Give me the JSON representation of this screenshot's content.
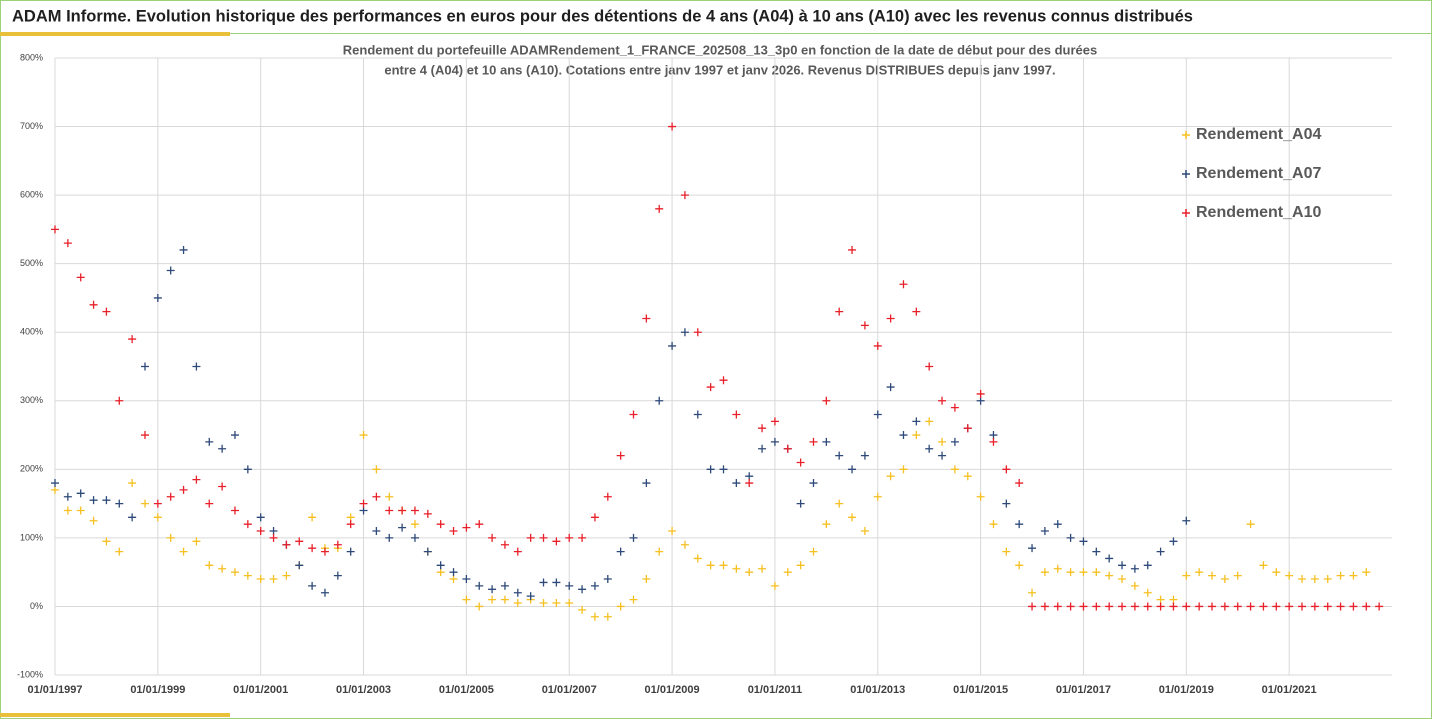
{
  "header": {
    "title": "ADAM Informe. Evolution historique des performances en euros pour des détentions de 4 ans (A04) à 10 ans (A10) avec les revenus connus distribués"
  },
  "chart_data": {
    "type": "scatter",
    "title_lines": [
      "Rendement du portefeuille ADAMRendement_1_FRANCE_202508_13_3p0  en fonction de la date de début pour des durées",
      "entre 4 (A04) et 10 ans (A10). Cotations entre janv 1997 et janv 2026. Revenus DISTRIBUES depuis janv 1997."
    ],
    "x": [
      "01/01/1997",
      "01/04/1997",
      "01/07/1997",
      "01/10/1997",
      "01/01/1998",
      "01/04/1998",
      "01/07/1998",
      "01/10/1998",
      "01/01/1999",
      "01/04/1999",
      "01/07/1999",
      "01/10/1999",
      "01/01/2000",
      "01/04/2000",
      "01/07/2000",
      "01/10/2000",
      "01/01/2001",
      "01/04/2001",
      "01/07/2001",
      "01/10/2001",
      "01/01/2002",
      "01/04/2002",
      "01/07/2002",
      "01/10/2002",
      "01/01/2003",
      "01/04/2003",
      "01/07/2003",
      "01/10/2003",
      "01/01/2004",
      "01/04/2004",
      "01/07/2004",
      "01/10/2004",
      "01/01/2005",
      "01/04/2005",
      "01/07/2005",
      "01/10/2005",
      "01/01/2006",
      "01/04/2006",
      "01/07/2006",
      "01/10/2006",
      "01/01/2007",
      "01/04/2007",
      "01/07/2007",
      "01/10/2007",
      "01/01/2008",
      "01/04/2008",
      "01/07/2008",
      "01/10/2008",
      "01/01/2009",
      "01/04/2009",
      "01/07/2009",
      "01/10/2009",
      "01/01/2010",
      "01/04/2010",
      "01/07/2010",
      "01/10/2010",
      "01/01/2011",
      "01/04/2011",
      "01/07/2011",
      "01/10/2011",
      "01/01/2012",
      "01/04/2012",
      "01/07/2012",
      "01/10/2012",
      "01/01/2013",
      "01/04/2013",
      "01/07/2013",
      "01/10/2013",
      "01/01/2014",
      "01/04/2014",
      "01/07/2014",
      "01/10/2014",
      "01/01/2015",
      "01/04/2015",
      "01/07/2015",
      "01/10/2015",
      "01/01/2016",
      "01/04/2016",
      "01/07/2016",
      "01/10/2016",
      "01/01/2017",
      "01/04/2017",
      "01/07/2017",
      "01/10/2017",
      "01/01/2018",
      "01/04/2018",
      "01/07/2018",
      "01/10/2018",
      "01/01/2019",
      "01/04/2019",
      "01/07/2019",
      "01/10/2019",
      "01/01/2020",
      "01/04/2020",
      "01/07/2020",
      "01/10/2020",
      "01/01/2021",
      "01/04/2021",
      "01/07/2021",
      "01/10/2021",
      "01/01/2022",
      "01/04/2022",
      "01/07/2022",
      "01/10/2022"
    ],
    "series": [
      {
        "name": "Rendement_A04",
        "color": "#f5c020",
        "values": [
          170,
          140,
          140,
          125,
          95,
          80,
          180,
          150,
          130,
          100,
          80,
          95,
          60,
          55,
          50,
          45,
          40,
          40,
          45,
          60,
          130,
          85,
          85,
          130,
          250,
          200,
          160,
          140,
          120,
          80,
          50,
          40,
          10,
          0,
          10,
          10,
          5,
          10,
          5,
          5,
          5,
          -5,
          -15,
          -15,
          0,
          10,
          40,
          80,
          110,
          90,
          70,
          60,
          60,
          55,
          50,
          55,
          30,
          50,
          60,
          80,
          120,
          150,
          130,
          110,
          160,
          190,
          200,
          250,
          270,
          240,
          200,
          190,
          160,
          120,
          80,
          60,
          20,
          50,
          55,
          50,
          50,
          50,
          45,
          40,
          30,
          20,
          10,
          10,
          45,
          50,
          45,
          40,
          45,
          120,
          60,
          50,
          45,
          40,
          40,
          40,
          45,
          45,
          50,
          null
        ]
      },
      {
        "name": "Rendement_A07",
        "color": "#2e4a7a",
        "values": [
          180,
          160,
          165,
          155,
          155,
          150,
          130,
          350,
          450,
          490,
          520,
          350,
          240,
          230,
          250,
          200,
          130,
          110,
          90,
          60,
          30,
          20,
          45,
          80,
          140,
          110,
          100,
          115,
          100,
          80,
          60,
          50,
          40,
          30,
          25,
          30,
          20,
          15,
          35,
          35,
          30,
          25,
          30,
          40,
          80,
          100,
          180,
          300,
          380,
          400,
          280,
          200,
          200,
          180,
          190,
          230,
          240,
          230,
          150,
          180,
          240,
          220,
          200,
          220,
          280,
          320,
          250,
          270,
          230,
          220,
          240,
          260,
          300,
          250,
          150,
          120,
          85,
          110,
          120,
          100,
          95,
          80,
          70,
          60,
          55,
          60,
          80,
          95,
          125,
          null,
          null,
          null,
          null,
          null,
          null,
          null,
          null,
          null,
          null,
          null,
          null,
          null,
          null,
          null
        ]
      },
      {
        "name": "Rendement_A10",
        "color": "#e8202a",
        "values": [
          550,
          530,
          480,
          440,
          430,
          300,
          390,
          250,
          150,
          160,
          170,
          185,
          150,
          175,
          140,
          120,
          110,
          100,
          90,
          95,
          85,
          80,
          90,
          120,
          150,
          160,
          140,
          140,
          140,
          135,
          120,
          110,
          115,
          120,
          100,
          90,
          80,
          100,
          100,
          95,
          100,
          100,
          130,
          160,
          220,
          280,
          420,
          580,
          700,
          600,
          400,
          320,
          330,
          280,
          180,
          260,
          270,
          230,
          210,
          240,
          300,
          430,
          520,
          410,
          380,
          420,
          470,
          430,
          350,
          300,
          290,
          260,
          310,
          240,
          200,
          180,
          0,
          0,
          0,
          0,
          0,
          0,
          0,
          0,
          0,
          0,
          0,
          0,
          0,
          0,
          0,
          0,
          0,
          0,
          0,
          0,
          0,
          0,
          0,
          0,
          0,
          0,
          0,
          0
        ]
      }
    ],
    "xlim": [
      "01/01/1997",
      "01/01/2023"
    ],
    "xticks": [
      "01/01/1997",
      "01/01/1999",
      "01/01/2001",
      "01/01/2003",
      "01/01/2005",
      "01/01/2007",
      "01/01/2009",
      "01/01/2011",
      "01/01/2013",
      "01/01/2015",
      "01/01/2017",
      "01/01/2019",
      "01/01/2021"
    ],
    "ylim": [
      -100,
      800
    ],
    "yticks": [
      {
        "value": -100,
        "label": "-100%"
      },
      {
        "value": 0,
        "label": "0%"
      },
      {
        "value": 100,
        "label": "100%"
      },
      {
        "value": 200,
        "label": "200%"
      },
      {
        "value": 300,
        "label": "300%"
      },
      {
        "value": 400,
        "label": "400%"
      },
      {
        "value": 500,
        "label": "500%"
      },
      {
        "value": 600,
        "label": "600%"
      },
      {
        "value": 700,
        "label": "700%"
      },
      {
        "value": 800,
        "label": "800%"
      }
    ],
    "grid": true
  }
}
